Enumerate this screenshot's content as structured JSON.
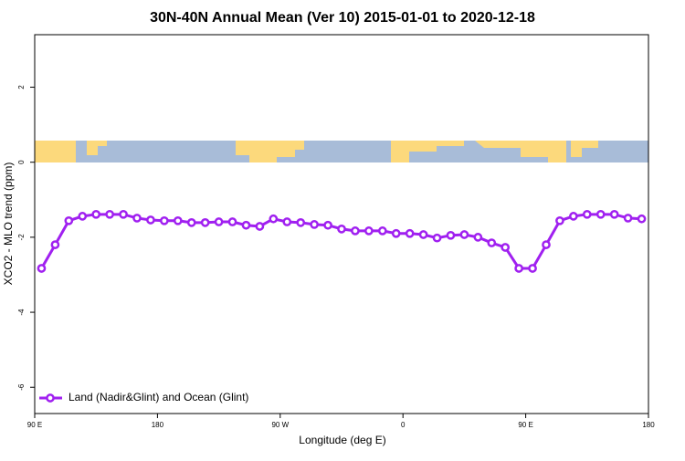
{
  "chart_data": {
    "type": "line",
    "title": "30N-40N Annual Mean (Ver 10)   2015-01-01 to 2020-12-18",
    "x_label": "Longitude (deg E)",
    "y_label": "XCO2 - MLO trend (ppm)",
    "x": [
      95,
      105,
      115,
      125,
      135,
      145,
      155,
      165,
      175,
      185,
      195,
      205,
      215,
      225,
      235,
      245,
      255,
      265,
      275,
      285,
      295,
      305,
      315,
      325,
      335,
      345,
      355,
      365,
      375,
      385,
      395,
      405,
      415,
      425,
      435,
      445,
      455,
      465,
      475,
      485,
      495,
      505,
      515,
      525,
      535
    ],
    "series": [
      {
        "name": "Land (Nadir&Glint) and Ocean (Glint)",
        "color": "#a020f0",
        "values": [
          -2.83,
          -2.2,
          -1.56,
          -1.44,
          -1.39,
          -1.39,
          -1.39,
          -1.49,
          -1.54,
          -1.56,
          -1.56,
          -1.61,
          -1.61,
          -1.59,
          -1.59,
          -1.68,
          -1.71,
          -1.51,
          -1.59,
          -1.61,
          -1.66,
          -1.68,
          -1.78,
          -1.83,
          -1.83,
          -1.83,
          -1.9,
          -1.9,
          -1.93,
          -2.02,
          -1.95,
          -1.93,
          -2.0,
          -2.15,
          -2.27,
          -2.83,
          -2.83,
          -2.2,
          -1.56,
          -1.44,
          -1.39,
          -1.39,
          -1.39,
          -1.49,
          -1.51
        ]
      }
    ],
    "xlim": [
      90,
      540
    ],
    "xticks": [
      {
        "value": 90,
        "label": "90 E"
      },
      180,
      {
        "value": 270,
        "label": "90 W"
      },
      {
        "value": 360,
        "label": "0"
      },
      {
        "value": 450,
        "label": "90 E"
      },
      {
        "value": 540,
        "label": "180"
      }
    ],
    "ylim": [
      -6.7,
      3.4
    ],
    "yticks": [
      -6,
      -4,
      -2,
      0,
      2
    ],
    "legend": "bottom-left"
  }
}
